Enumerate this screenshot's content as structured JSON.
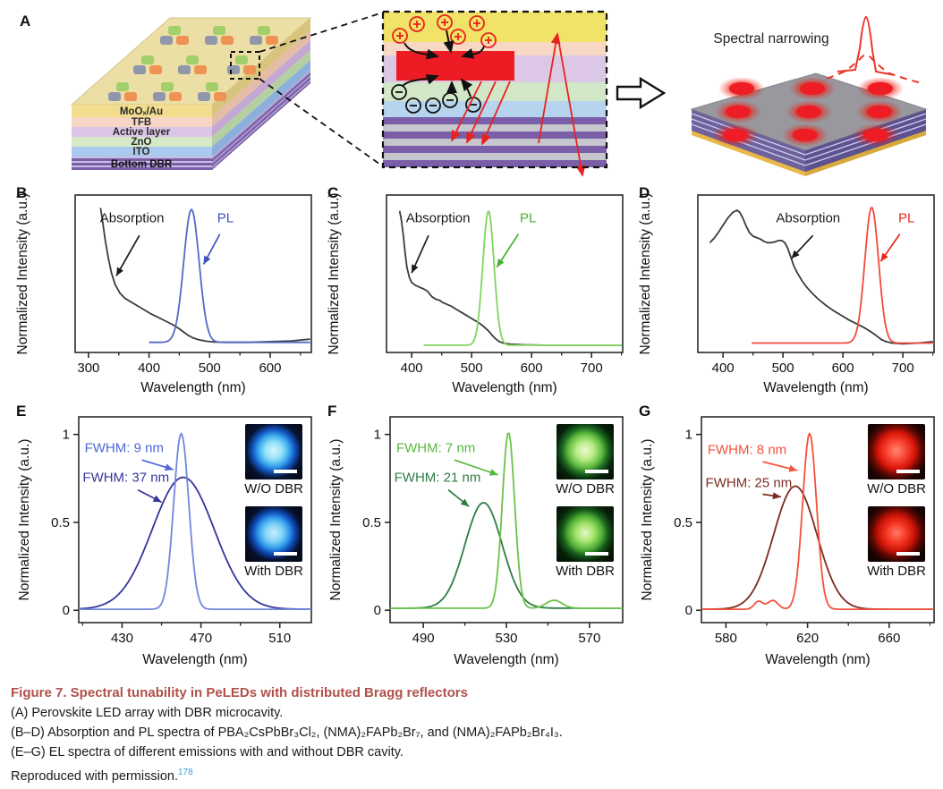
{
  "panel_a": {
    "letter": "A",
    "layers": [
      "MoOₓ/Au",
      "TFB",
      "Active layer",
      "ZnO",
      "ITO",
      "Bottom DBR"
    ],
    "narrowing_label": "Spectral narrowing",
    "colors": {
      "top_face": "#ecdfa5",
      "dot_green": "#a2cf6a",
      "dot_gray": "#9097ab",
      "dot_orange": "#ef9355",
      "emitter_red": "#ed1c24",
      "dbr_purple": "#7a5fa8",
      "dbr_gray": "#c6c6ce",
      "photon_red": "#e8231d"
    }
  },
  "chart_data": [
    {
      "panel": "B",
      "type": "line",
      "geom": "small",
      "xlabel": "Wavelength (nm)",
      "ylabel": "Normalized Intensity (a.u.)",
      "xlim": [
        278,
        668
      ],
      "xticks": [
        300,
        400,
        500,
        600
      ],
      "series": [
        {
          "name": "Absorption",
          "color": "#3b3b3b",
          "points": [
            [
              320,
              0.97
            ],
            [
              324,
              0.86
            ],
            [
              328,
              0.74
            ],
            [
              333,
              0.62
            ],
            [
              338,
              0.52
            ],
            [
              344,
              0.44
            ],
            [
              352,
              0.38
            ],
            [
              360,
              0.345
            ],
            [
              368,
              0.325
            ],
            [
              376,
              0.305
            ],
            [
              384,
              0.285
            ],
            [
              392,
              0.265
            ],
            [
              402,
              0.24
            ],
            [
              414,
              0.215
            ],
            [
              426,
              0.19
            ],
            [
              438,
              0.165
            ],
            [
              448,
              0.14
            ],
            [
              456,
              0.115
            ],
            [
              464,
              0.09
            ],
            [
              472,
              0.072
            ],
            [
              482,
              0.058
            ],
            [
              494,
              0.048
            ],
            [
              508,
              0.042
            ],
            [
              530,
              0.04
            ],
            [
              565,
              0.04
            ],
            [
              600,
              0.045
            ],
            [
              635,
              0.05
            ],
            [
              666,
              0.062
            ]
          ]
        },
        {
          "name": "PL",
          "color": "#5668c4",
          "gaussian": {
            "components": [
              {
                "center": 470,
                "fwhm": 30,
                "height": 0.92
              }
            ],
            "baseline": 0.04,
            "range": [
              400,
              666
            ]
          }
        }
      ],
      "annotations": [
        {
          "text": "Absorption",
          "color": "#1a1a1a",
          "anchor": "middle",
          "tx": 372,
          "ty": 0.87,
          "arrow": [
            384,
            0.78,
            346,
            0.5
          ]
        },
        {
          "text": "PL",
          "color": "#3c50c0",
          "anchor": "middle",
          "tx": 526,
          "ty": 0.87,
          "arrow": [
            517,
            0.79,
            490,
            0.58
          ]
        }
      ]
    },
    {
      "panel": "C",
      "type": "line",
      "geom": "small",
      "xlabel": "Wavelength (nm)",
      "ylabel": "Normalized Intensity (a.u.)",
      "xlim": [
        358,
        752
      ],
      "xticks": [
        400,
        500,
        600,
        700
      ],
      "series": [
        {
          "name": "Absorption",
          "color": "#3b3b3b",
          "points": [
            [
              380,
              0.95
            ],
            [
              383,
              0.88
            ],
            [
              386,
              0.78
            ],
            [
              389,
              0.66
            ],
            [
              392,
              0.56
            ],
            [
              396,
              0.49
            ],
            [
              400,
              0.455
            ],
            [
              406,
              0.435
            ],
            [
              414,
              0.42
            ],
            [
              420,
              0.41
            ],
            [
              426,
              0.395
            ],
            [
              430,
              0.375
            ],
            [
              434,
              0.355
            ],
            [
              440,
              0.34
            ],
            [
              447,
              0.33
            ],
            [
              452,
              0.315
            ],
            [
              458,
              0.305
            ],
            [
              466,
              0.29
            ],
            [
              474,
              0.27
            ],
            [
              482,
              0.25
            ],
            [
              492,
              0.225
            ],
            [
              502,
              0.2
            ],
            [
              512,
              0.175
            ],
            [
              520,
              0.15
            ],
            [
              528,
              0.12
            ],
            [
              534,
              0.09
            ],
            [
              540,
              0.065
            ],
            [
              546,
              0.045
            ],
            [
              554,
              0.033
            ],
            [
              565,
              0.027
            ],
            [
              585,
              0.023
            ],
            [
              620,
              0.02
            ],
            [
              680,
              0.02
            ],
            [
              750,
              0.02
            ]
          ]
        },
        {
          "name": "PL",
          "color": "#82d45e",
          "gaussian": {
            "components": [
              {
                "center": 528,
                "fwhm": 22,
                "height": 0.93
              }
            ],
            "baseline": 0.02,
            "range": [
              420,
              750
            ]
          }
        }
      ],
      "annotations": [
        {
          "text": "Absorption",
          "color": "#1a1a1a",
          "anchor": "middle",
          "tx": 444,
          "ty": 0.87,
          "arrow": [
            428,
            0.78,
            400,
            0.52
          ]
        },
        {
          "text": "PL",
          "color": "#45b02e",
          "anchor": "middle",
          "tx": 594,
          "ty": 0.87,
          "arrow": [
            578,
            0.79,
            542,
            0.56
          ]
        }
      ]
    },
    {
      "panel": "D",
      "type": "line",
      "geom": "small",
      "xlabel": "Wavelength (nm)",
      "ylabel": "Normalized Intensity (a.u.)",
      "xlim": [
        358,
        752
      ],
      "xticks": [
        400,
        500,
        600,
        700
      ],
      "series": [
        {
          "name": "Absorption",
          "color": "#3b3b3b",
          "points": [
            [
              378,
              0.73
            ],
            [
              385,
              0.76
            ],
            [
              392,
              0.8
            ],
            [
              400,
              0.85
            ],
            [
              408,
              0.9
            ],
            [
              416,
              0.94
            ],
            [
              423,
              0.955
            ],
            [
              428,
              0.94
            ],
            [
              433,
              0.9
            ],
            [
              438,
              0.85
            ],
            [
              444,
              0.8
            ],
            [
              450,
              0.775
            ],
            [
              456,
              0.765
            ],
            [
              462,
              0.755
            ],
            [
              468,
              0.74
            ],
            [
              474,
              0.73
            ],
            [
              480,
              0.73
            ],
            [
              486,
              0.735
            ],
            [
              492,
              0.745
            ],
            [
              498,
              0.745
            ],
            [
              503,
              0.73
            ],
            [
              508,
              0.69
            ],
            [
              513,
              0.63
            ],
            [
              518,
              0.57
            ],
            [
              524,
              0.52
            ],
            [
              532,
              0.465
            ],
            [
              540,
              0.42
            ],
            [
              550,
              0.375
            ],
            [
              560,
              0.335
            ],
            [
              572,
              0.295
            ],
            [
              584,
              0.26
            ],
            [
              596,
              0.23
            ],
            [
              610,
              0.195
            ],
            [
              622,
              0.17
            ],
            [
              634,
              0.145
            ],
            [
              646,
              0.115
            ],
            [
              656,
              0.085
            ],
            [
              664,
              0.06
            ],
            [
              672,
              0.045
            ],
            [
              682,
              0.035
            ],
            [
              700,
              0.03
            ],
            [
              725,
              0.035
            ],
            [
              750,
              0.045
            ]
          ]
        },
        {
          "name": "PL",
          "color": "#f24a3c",
          "gaussian": {
            "components": [
              {
                "center": 648,
                "fwhm": 27,
                "height": 0.94
              }
            ],
            "baseline": 0.035,
            "range": [
              448,
              752
            ]
          }
        }
      ],
      "annotations": [
        {
          "text": "Absorption",
          "color": "#1a1a1a",
          "anchor": "middle",
          "tx": 542,
          "ty": 0.87,
          "arrow": [
            550,
            0.78,
            514,
            0.62
          ]
        },
        {
          "text": "PL",
          "color": "#e8281c",
          "anchor": "middle",
          "tx": 706,
          "ty": 0.87,
          "arrow": [
            695,
            0.79,
            663,
            0.6
          ]
        }
      ]
    },
    {
      "panel": "E",
      "type": "line",
      "geom": "big",
      "xlabel": "Wavelength (nm)",
      "ylabel": "Normalized Intensity (a.u.)",
      "xlim": [
        408,
        526
      ],
      "xticks": [
        430,
        470,
        510
      ],
      "yticks": [
        0,
        0.5,
        1
      ],
      "series": [
        {
          "name": "W/O DBR EL (FWHM 37 nm)",
          "color": "#34359c",
          "gaussian": {
            "components": [
              {
                "center": 461,
                "fwhm": 37,
                "height": 0.75
              }
            ],
            "baseline": 0.006,
            "range": [
              408,
              526
            ]
          }
        },
        {
          "name": "With DBR EL (FWHM 9 nm)",
          "color": "#7186dc",
          "gaussian": {
            "components": [
              {
                "center": 460,
                "fwhm": 9,
                "height": 1.0
              }
            ],
            "baseline": 0.006,
            "range": [
              408,
              526
            ]
          }
        }
      ],
      "annotations": [
        {
          "text": "FWHM: 9 nm",
          "color": "#4d68d8",
          "anchor": "start",
          "tx": 411,
          "ty": 0.9,
          "arrow": [
            440,
            0.855,
            456,
            0.8
          ]
        },
        {
          "text": "FWHM: 37 nm",
          "color": "#34359c",
          "anchor": "start",
          "tx": 410,
          "ty": 0.73,
          "arrow": [
            438,
            0.685,
            450,
            0.615
          ]
        }
      ],
      "insets": [
        {
          "label": "W/O DBR",
          "gradient": "radial-gradient(circle at 50% 48%, #d6f6fd 0%, #8fe0f7 22%, #38a8ee 38%, #1255c0 52%, #071330 68%, #04060e 100%)"
        },
        {
          "label": "With DBR",
          "gradient": "radial-gradient(circle at 50% 48%, #c6eefc 0%, #7fd2f5 22%, #2f9aec 38%, #0e48b4 52%, #06102c 68%, #04060e 100%)"
        }
      ]
    },
    {
      "panel": "F",
      "type": "line",
      "geom": "big",
      "xlabel": "Wavelength (nm)",
      "ylabel": "Normalized Intensity (a.u.)",
      "xlim": [
        474,
        586
      ],
      "xticks": [
        490,
        530,
        570
      ],
      "yticks": [
        0,
        0.5,
        1
      ],
      "series": [
        {
          "name": "W/O DBR EL (FWHM 21 nm)",
          "color": "#2e7d46",
          "gaussian": {
            "components": [
              {
                "center": 519,
                "fwhm": 21,
                "height": 0.6
              }
            ],
            "baseline": 0.012,
            "range": [
              474,
              586
            ]
          }
        },
        {
          "name": "With DBR EL (FWHM 7 nm)",
          "color": "#6cc24a",
          "gaussian": {
            "components": [
              {
                "center": 531,
                "fwhm": 7,
                "height": 1.0
              },
              {
                "center": 553,
                "fwhm": 9,
                "height": 0.045
              }
            ],
            "baseline": 0.012,
            "range": [
              474,
              586
            ]
          }
        }
      ],
      "annotations": [
        {
          "text": "FWHM: 7 nm",
          "color": "#57b93e",
          "anchor": "start",
          "tx": 477,
          "ty": 0.9,
          "arrow": [
            505,
            0.855,
            526,
            0.77
          ]
        },
        {
          "text": "FWHM: 21 nm",
          "color": "#2e7d46",
          "anchor": "start",
          "tx": 476,
          "ty": 0.73,
          "arrow": [
            502,
            0.685,
            512,
            0.59
          ]
        }
      ],
      "insets": [
        {
          "label": "W/O DBR",
          "gradient": "radial-gradient(circle at 50% 48%, #eefad2 0%, #b9ec86 22%, #5fba3e 42%, #1c6a22 56%, #07230a 72%, #030b04 100%)"
        },
        {
          "label": "With DBR",
          "gradient": "radial-gradient(circle at 50% 48%, #e4f8c4 0%, #a8e470 22%, #4fae34 42%, #165c1c 56%, #062008 72%, #030b04 100%)"
        }
      ]
    },
    {
      "panel": "G",
      "type": "line",
      "geom": "big",
      "xlabel": "Wavelength (nm)",
      "ylabel": "Normalized Intensity (a.u.)",
      "xlim": [
        568,
        682
      ],
      "xticks": [
        580,
        620,
        660
      ],
      "yticks": [
        0,
        0.5,
        1
      ],
      "series": [
        {
          "name": "W/O DBR EL (FWHM 25 nm)",
          "color": "#7c2b21",
          "gaussian": {
            "components": [
              {
                "center": 614,
                "fwhm": 25,
                "height": 0.7
              }
            ],
            "baseline": 0.006,
            "range": [
              568,
              682
            ]
          }
        },
        {
          "name": "With DBR EL (FWHM 8 nm)",
          "color": "#f4503c",
          "gaussian": {
            "components": [
              {
                "center": 621,
                "fwhm": 8,
                "height": 1.0
              },
              {
                "center": 596,
                "fwhm": 5,
                "height": 0.045
              },
              {
                "center": 603,
                "fwhm": 6,
                "height": 0.05
              }
            ],
            "baseline": 0.006,
            "range": [
              568,
              682
            ]
          }
        }
      ],
      "annotations": [
        {
          "text": "FWHM: 8 nm",
          "color": "#f4503c",
          "anchor": "start",
          "tx": 571,
          "ty": 0.89,
          "arrow": [
            598,
            0.845,
            615,
            0.795
          ]
        },
        {
          "text": "FWHM: 25 nm",
          "color": "#7c2b21",
          "anchor": "start",
          "tx": 570,
          "ty": 0.7,
          "arrow": [
            598,
            0.66,
            607,
            0.645
          ]
        }
      ],
      "insets": [
        {
          "label": "W/O DBR",
          "gradient": "radial-gradient(circle at 50% 48%, #ff8876 0%, #f9422f 25%, #d31408 46%, #6a0903 60%, #1d0402 76%, #0c0202 100%)"
        },
        {
          "label": "With DBR",
          "gradient": "radial-gradient(circle at 50% 48%, #ff7a66 0%, #f53622 25%, #c31105 46%, #5e0802 60%, #1a0402 76%, #0c0202 100%)"
        }
      ]
    }
  ],
  "caption": {
    "title": "Figure 7.  Spectral tunability in PeLEDs with distributed Bragg reflectors",
    "title_color": "#b0504a",
    "lines": [
      "(A) Perovskite LED array with DBR microcavity.",
      "(B–D) Absorption and PL spectra of PBA₂CsPbBr₃Cl₂, (NMA)₂FAPb₂Br₇, and (NMA)₂FAPb₂Br₄I₃.",
      "(E–G) EL spectra of different emissions with and without DBR cavity."
    ],
    "permission_text": "Reproduced with permission.",
    "reference": "178",
    "reference_color": "#3aa0dc"
  }
}
